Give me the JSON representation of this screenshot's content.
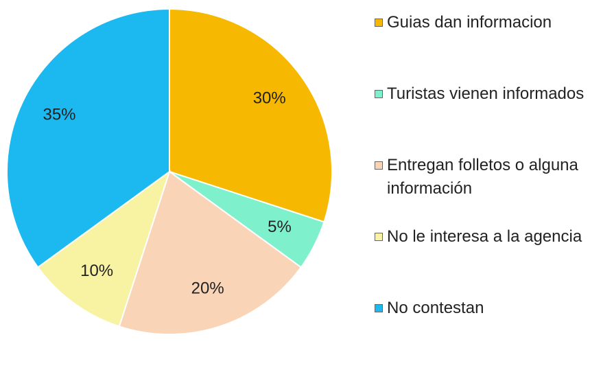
{
  "chart_data": {
    "type": "pie",
    "categories": [
      "Guias dan informacion",
      "Turistas vienen informados",
      "Entregan folletos o alguna información",
      "No le interesa a la agencia",
      "No contestan"
    ],
    "values": [
      30,
      5,
      20,
      10,
      35
    ],
    "value_labels": [
      "30%",
      "5%",
      "20%",
      "10%",
      "35%"
    ],
    "colors": [
      "#f6b800",
      "#7ff0cc",
      "#f9d4b6",
      "#f8f3a2",
      "#1bb9ef"
    ],
    "legend": "right"
  }
}
